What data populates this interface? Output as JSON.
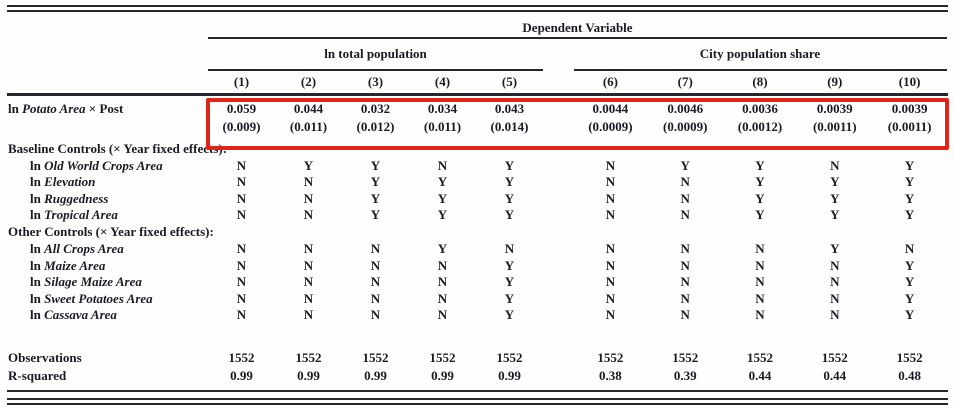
{
  "table": {
    "title": "Dependent Variable",
    "groups": [
      {
        "label": "ln total population",
        "columns": [
          "(1)",
          "(2)",
          "(3)",
          "(4)",
          "(5)"
        ]
      },
      {
        "label": "City population share",
        "columns": [
          "(6)",
          "(7)",
          "(8)",
          "(9)",
          "(10)"
        ]
      }
    ],
    "rows": [
      {
        "type": "coef",
        "label_prefix": "ln ",
        "label_italic": "Potato Area",
        "label_suffix": " × Post",
        "values": [
          "0.059",
          "0.044",
          "0.032",
          "0.034",
          "0.043",
          "0.0044",
          "0.0046",
          "0.0036",
          "0.0039",
          "0.0039"
        ]
      },
      {
        "type": "se",
        "values": [
          "(0.009)",
          "(0.011)",
          "(0.012)",
          "(0.011)",
          "(0.014)",
          "(0.0009)",
          "(0.0009)",
          "(0.0012)",
          "(0.0011)",
          "(0.0011)"
        ]
      },
      {
        "type": "section",
        "label": "Baseline Controls (× Year fixed effects):"
      },
      {
        "type": "control",
        "label_prefix": "ln ",
        "label_italic": "Old World Crops Area",
        "values": [
          "N",
          "Y",
          "Y",
          "N",
          "Y",
          "N",
          "Y",
          "Y",
          "N",
          "Y"
        ]
      },
      {
        "type": "control",
        "label_prefix": "ln ",
        "label_italic": "Elevation",
        "values": [
          "N",
          "N",
          "Y",
          "Y",
          "Y",
          "N",
          "N",
          "Y",
          "Y",
          "Y"
        ]
      },
      {
        "type": "control",
        "label_prefix": "ln ",
        "label_italic": "Ruggedness",
        "values": [
          "N",
          "N",
          "Y",
          "Y",
          "Y",
          "N",
          "N",
          "Y",
          "Y",
          "Y"
        ]
      },
      {
        "type": "control",
        "label_prefix": "ln ",
        "label_italic": "Tropical Area",
        "values": [
          "N",
          "N",
          "Y",
          "Y",
          "Y",
          "N",
          "N",
          "Y",
          "Y",
          "Y"
        ]
      },
      {
        "type": "section",
        "label": "Other Controls (× Year fixed effects):"
      },
      {
        "type": "control",
        "label_prefix": "ln ",
        "label_italic": "All Crops Area",
        "values": [
          "N",
          "N",
          "N",
          "Y",
          "N",
          "N",
          "N",
          "N",
          "Y",
          "N"
        ]
      },
      {
        "type": "control",
        "label_prefix": "ln ",
        "label_italic": "Maize Area",
        "values": [
          "N",
          "N",
          "N",
          "N",
          "Y",
          "N",
          "N",
          "N",
          "N",
          "Y"
        ]
      },
      {
        "type": "control",
        "label_prefix": "ln ",
        "label_italic": "Silage Maize Area",
        "values": [
          "N",
          "N",
          "N",
          "N",
          "Y",
          "N",
          "N",
          "N",
          "N",
          "Y"
        ]
      },
      {
        "type": "control",
        "label_prefix": "ln ",
        "label_italic": "Sweet Potatoes Area",
        "values": [
          "N",
          "N",
          "N",
          "N",
          "Y",
          "N",
          "N",
          "N",
          "N",
          "Y"
        ]
      },
      {
        "type": "control",
        "label_prefix": "ln ",
        "label_italic": "Cassava Area",
        "values": [
          "N",
          "N",
          "N",
          "N",
          "Y",
          "N",
          "N",
          "N",
          "N",
          "Y"
        ]
      },
      {
        "type": "stat",
        "label": "Observations",
        "values": [
          "1552",
          "1552",
          "1552",
          "1552",
          "1552",
          "1552",
          "1552",
          "1552",
          "1552",
          "1552"
        ]
      },
      {
        "type": "stat",
        "label": "R-squared",
        "values": [
          "0.99",
          "0.99",
          "0.99",
          "0.99",
          "0.99",
          "0.38",
          "0.39",
          "0.44",
          "0.44",
          "0.48"
        ]
      }
    ]
  },
  "annotation": {
    "highlight_color": "#e0241b"
  }
}
